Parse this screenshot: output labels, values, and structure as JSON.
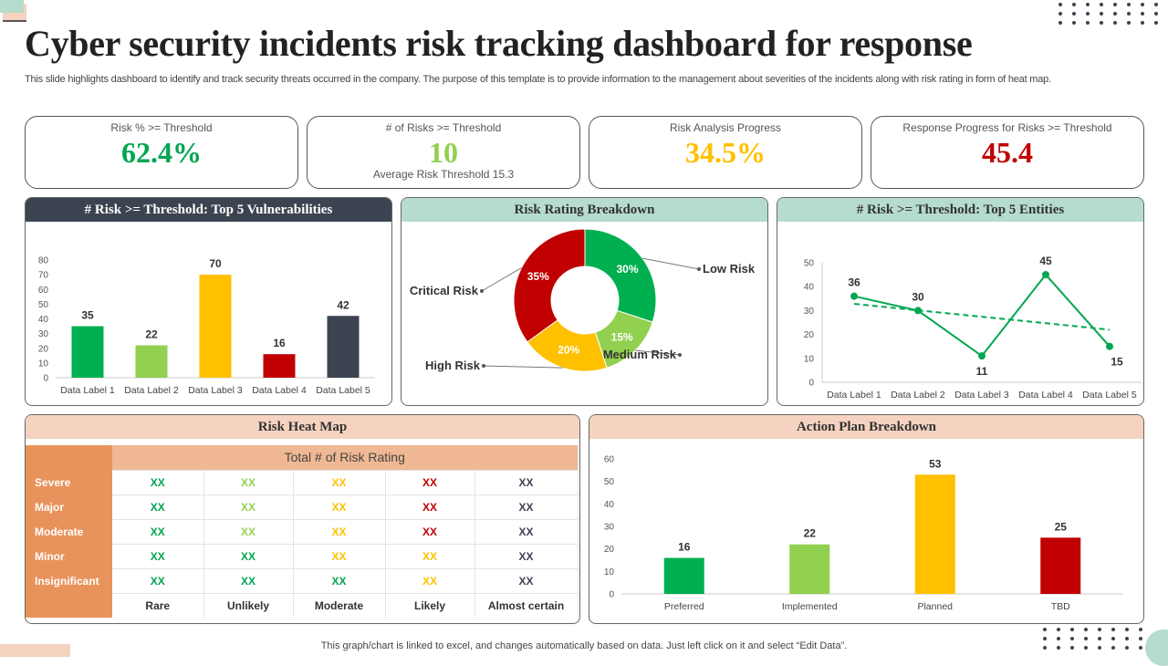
{
  "title": "Cyber security incidents risk tracking dashboard for response",
  "description": "This slide highlights dashboard to identify and track security threats occurred in the company. The purpose of this template is to provide information to the management about severities of the incidents along with risk rating in form of heat map.",
  "kpis": [
    {
      "label": "Risk % >= Threshold",
      "value": "62.4%",
      "color": "#00a651"
    },
    {
      "label": "# of Risks >= Threshold",
      "value": "10",
      "sub": "Average Risk Threshold 15.3",
      "color": "#92d050"
    },
    {
      "label": "Risk Analysis Progress",
      "value": "34.5%",
      "color": "#ffc000"
    },
    {
      "label": "Response Progress for Risks >= Threshold",
      "value": "45.4",
      "color": "#c00000"
    }
  ],
  "footer": "This graph/chart is linked to excel, and changes automatically based on data. Just left click on it and select “Edit Data”.",
  "chart_data": [
    {
      "type": "bar",
      "title": "# Risk >= Threshold:  Top 5 Vulnerabilities",
      "categories": [
        "Data Label 1",
        "Data Label 2",
        "Data Label 3",
        "Data Label 4",
        "Data Label 5"
      ],
      "values": [
        35,
        22,
        70,
        16,
        42
      ],
      "colors": [
        "#00b050",
        "#92d050",
        "#ffc000",
        "#c00000",
        "#3d4451"
      ],
      "ylim": [
        0,
        80
      ],
      "yticks": [
        0,
        10,
        20,
        30,
        40,
        50,
        60,
        70,
        80
      ],
      "grid": false
    },
    {
      "type": "pie",
      "title": "Risk Rating Breakdown",
      "donut": true,
      "categories": [
        "Low Risk",
        "Medium  Risk",
        "High Risk",
        "Critical Risk"
      ],
      "values": [
        30,
        15,
        20,
        35
      ],
      "labels": [
        "30%",
        "15%",
        "20%",
        "35%"
      ],
      "colors": [
        "#00b050",
        "#92d050",
        "#ffc000",
        "#c00000"
      ]
    },
    {
      "type": "line",
      "title": "# Risk >= Threshold:  Top 5 Entities",
      "categories": [
        "Data Label 1",
        "Data Label 2",
        "Data Label 3",
        "Data Label 4",
        "Data Label 5"
      ],
      "values": [
        36,
        30,
        11,
        45,
        15
      ],
      "color": "#00a651",
      "trendline": "linear",
      "ylim": [
        0,
        50
      ],
      "yticks": [
        0,
        10,
        20,
        30,
        40,
        50
      ],
      "grid": false
    },
    {
      "type": "bar",
      "title": "Action Plan Breakdown",
      "categories": [
        "Preferred",
        "Implemented",
        "Planned",
        "TBD"
      ],
      "values": [
        16,
        22,
        53,
        25
      ],
      "colors": [
        "#00b050",
        "#92d050",
        "#ffc000",
        "#c00000"
      ],
      "ylim": [
        0,
        60
      ],
      "yticks": [
        0,
        10,
        20,
        30,
        40,
        50,
        60
      ],
      "grid": false
    }
  ],
  "heatmap": {
    "title": "Risk Heat Map",
    "header": "Total # of Risk Rating",
    "rows": [
      "Severe",
      "Major",
      "Moderate",
      "Minor",
      "Insignificant"
    ],
    "columns": [
      "Rare",
      "Unlikely",
      "Moderate",
      "Likely",
      "Almost certain"
    ],
    "cell": "XX",
    "colors": [
      [
        "#00a651",
        "#92d050",
        "#ffc000",
        "#c00000",
        "#3d4451"
      ],
      [
        "#00a651",
        "#92d050",
        "#ffc000",
        "#c00000",
        "#3d4451"
      ],
      [
        "#00a651",
        "#92d050",
        "#ffc000",
        "#c00000",
        "#3d4451"
      ],
      [
        "#00a651",
        "#00a651",
        "#ffc000",
        "#ffc000",
        "#3d4451"
      ],
      [
        "#00a651",
        "#00a651",
        "#00a651",
        "#ffc000",
        "#3d4451"
      ]
    ]
  },
  "colors": {
    "dark_header": "#3d4451",
    "mint_header": "#b5dccd",
    "peach_header": "#f5d3c0"
  }
}
